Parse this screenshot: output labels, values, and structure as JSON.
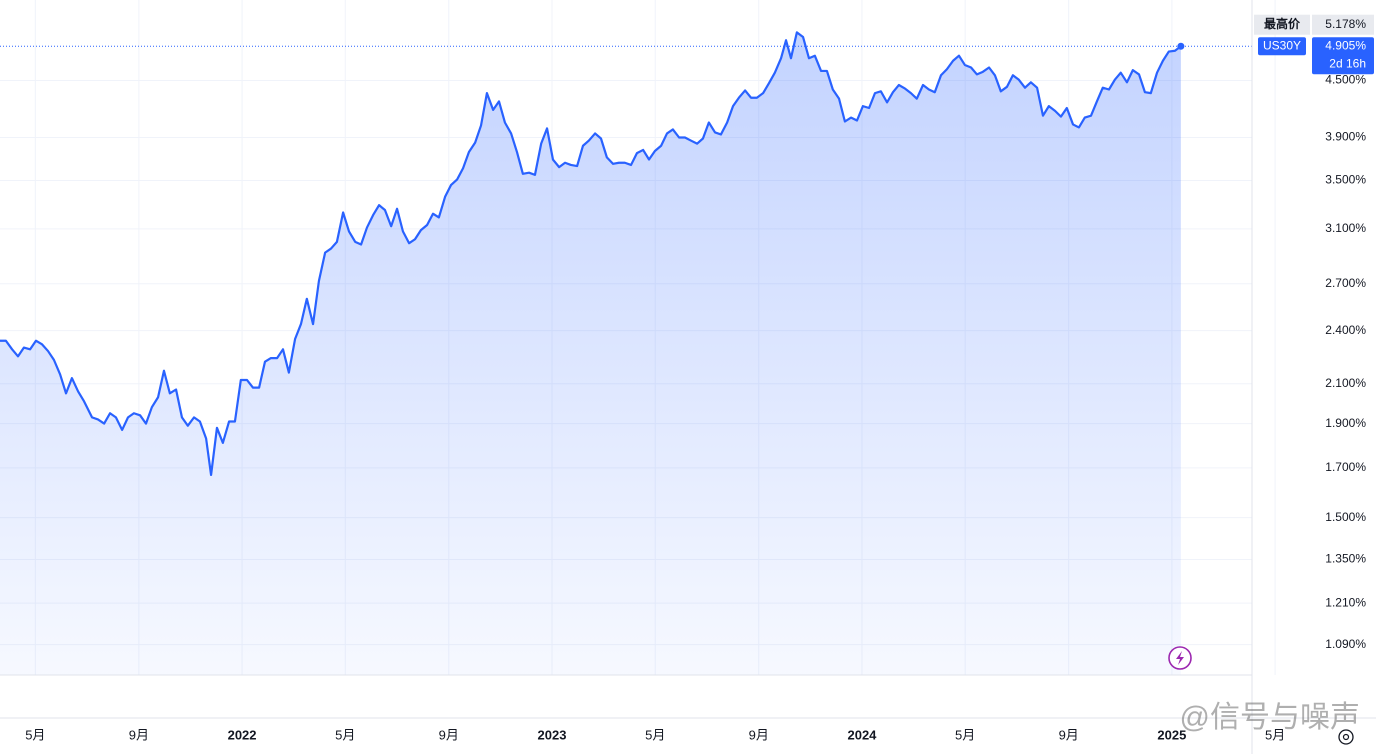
{
  "chart_data": {
    "type": "area",
    "log_scale": true,
    "grid": true,
    "xlim": [
      2021.219,
      2025.252
    ],
    "ylim": [
      1.01,
      5.51
    ],
    "xticks": [
      {
        "value": 2021.333,
        "label": "5月"
      },
      {
        "value": 2021.667,
        "label": "9月"
      },
      2022,
      {
        "value": 2022.333,
        "label": "5月"
      },
      {
        "value": 2022.667,
        "label": "9月"
      },
      2023,
      {
        "value": 2023.333,
        "label": "5月"
      },
      {
        "value": 2023.667,
        "label": "9月"
      },
      2024,
      {
        "value": 2024.333,
        "label": "5月"
      },
      {
        "value": 2024.667,
        "label": "9月"
      },
      2025,
      {
        "value": 2025.333,
        "label": "5月"
      }
    ],
    "yticks": [
      {
        "value": 4.5,
        "label": "4.500%"
      },
      {
        "value": 3.9,
        "label": "3.900%"
      },
      {
        "value": 3.5,
        "label": "3.500%"
      },
      {
        "value": 3.1,
        "label": "3.100%"
      },
      {
        "value": 2.7,
        "label": "2.700%"
      },
      {
        "value": 2.4,
        "label": "2.400%"
      },
      {
        "value": 2.1,
        "label": "2.100%"
      },
      {
        "value": 1.9,
        "label": "1.900%"
      },
      {
        "value": 1.7,
        "label": "1.700%"
      },
      {
        "value": 1.5,
        "label": "1.500%"
      },
      {
        "value": 1.35,
        "label": "1.350%"
      },
      {
        "value": 1.21,
        "label": "1.210%"
      },
      {
        "value": 1.09,
        "label": "1.090%"
      }
    ],
    "high": {
      "name": "最高价",
      "value": 5.178,
      "label": "5.178%"
    },
    "current": {
      "value": 4.905,
      "label": "4.905%",
      "countdown": "2d 16h"
    },
    "watermark": "@信号与噪声",
    "series": [
      {
        "name": "US30Y",
        "color": "#2962ff",
        "x": [
          2021.219,
          2021.238,
          2021.258,
          2021.277,
          2021.296,
          2021.316,
          2021.335,
          2021.354,
          2021.374,
          2021.393,
          2021.413,
          2021.432,
          2021.451,
          2021.471,
          2021.49,
          2021.516,
          2021.535,
          2021.555,
          2021.574,
          2021.593,
          2021.613,
          2021.632,
          2021.651,
          2021.671,
          2021.69,
          2021.709,
          2021.729,
          2021.748,
          2021.767,
          2021.787,
          2021.806,
          2021.825,
          2021.845,
          2021.864,
          2021.884,
          2021.9,
          2021.919,
          2021.938,
          2021.958,
          2021.977,
          2021.996,
          2022.016,
          2022.035,
          2022.055,
          2022.074,
          2022.093,
          2022.113,
          2022.132,
          2022.151,
          2022.171,
          2022.19,
          2022.209,
          2022.229,
          2022.248,
          2022.268,
          2022.287,
          2022.306,
          2022.326,
          2022.345,
          2022.365,
          2022.384,
          2022.403,
          2022.423,
          2022.442,
          2022.461,
          2022.481,
          2022.5,
          2022.519,
          2022.539,
          2022.558,
          2022.577,
          2022.597,
          2022.616,
          2022.635,
          2022.655,
          2022.674,
          2022.694,
          2022.713,
          2022.732,
          2022.752,
          2022.771,
          2022.79,
          2022.81,
          2022.829,
          2022.848,
          2022.868,
          2022.887,
          2022.906,
          2022.926,
          2022.945,
          2022.965,
          2022.984,
          2023.003,
          2023.023,
          2023.042,
          2023.061,
          2023.081,
          2023.1,
          2023.119,
          2023.139,
          2023.158,
          2023.177,
          2023.197,
          2023.216,
          2023.235,
          2023.255,
          2023.274,
          2023.294,
          2023.313,
          2023.332,
          2023.352,
          2023.371,
          2023.39,
          2023.41,
          2023.429,
          2023.448,
          2023.468,
          2023.487,
          2023.506,
          2023.526,
          2023.545,
          2023.565,
          2023.584,
          2023.603,
          2023.623,
          2023.642,
          2023.661,
          2023.681,
          2023.7,
          2023.719,
          2023.739,
          2023.755,
          2023.771,
          2023.79,
          2023.81,
          2023.829,
          2023.848,
          2023.868,
          2023.887,
          2023.906,
          2023.926,
          2023.945,
          2023.965,
          2023.984,
          2024.003,
          2024.023,
          2024.042,
          2024.061,
          2024.081,
          2024.1,
          2024.119,
          2024.139,
          2024.158,
          2024.177,
          2024.197,
          2024.216,
          2024.235,
          2024.255,
          2024.274,
          2024.294,
          2024.313,
          2024.332,
          2024.352,
          2024.371,
          2024.39,
          2024.41,
          2024.429,
          2024.448,
          2024.468,
          2024.487,
          2024.506,
          2024.526,
          2024.545,
          2024.565,
          2024.584,
          2024.603,
          2024.623,
          2024.642,
          2024.661,
          2024.681,
          2024.7,
          2024.719,
          2024.739,
          2024.758,
          2024.777,
          2024.797,
          2024.816,
          2024.835,
          2024.855,
          2024.874,
          2024.894,
          2024.913,
          2024.932,
          2024.952,
          2024.971,
          2024.99,
          2025.01,
          2025.029
        ],
        "values": [
          2.34,
          2.34,
          2.29,
          2.25,
          2.3,
          2.29,
          2.34,
          2.32,
          2.28,
          2.23,
          2.15,
          2.05,
          2.13,
          2.06,
          2.01,
          1.93,
          1.92,
          1.9,
          1.95,
          1.93,
          1.87,
          1.93,
          1.95,
          1.94,
          1.9,
          1.98,
          2.03,
          2.17,
          2.05,
          2.07,
          1.93,
          1.89,
          1.93,
          1.91,
          1.83,
          1.67,
          1.88,
          1.81,
          1.91,
          1.91,
          2.12,
          2.12,
          2.08,
          2.08,
          2.22,
          2.24,
          2.24,
          2.29,
          2.16,
          2.35,
          2.44,
          2.6,
          2.44,
          2.72,
          2.92,
          2.95,
          3.0,
          3.23,
          3.08,
          3.0,
          2.98,
          3.11,
          3.21,
          3.29,
          3.25,
          3.12,
          3.26,
          3.08,
          2.99,
          3.02,
          3.09,
          3.13,
          3.22,
          3.19,
          3.36,
          3.46,
          3.51,
          3.61,
          3.76,
          3.85,
          4.02,
          4.36,
          4.18,
          4.27,
          4.05,
          3.94,
          3.76,
          3.56,
          3.57,
          3.55,
          3.84,
          3.99,
          3.69,
          3.62,
          3.66,
          3.64,
          3.63,
          3.82,
          3.87,
          3.94,
          3.89,
          3.71,
          3.65,
          3.66,
          3.66,
          3.64,
          3.75,
          3.78,
          3.69,
          3.77,
          3.82,
          3.94,
          3.98,
          3.9,
          3.9,
          3.87,
          3.84,
          3.89,
          4.05,
          3.95,
          3.93,
          4.05,
          4.22,
          4.31,
          4.39,
          4.31,
          4.31,
          4.36,
          4.47,
          4.59,
          4.76,
          4.98,
          4.76,
          5.08,
          5.02,
          4.76,
          4.79,
          4.61,
          4.61,
          4.4,
          4.3,
          4.06,
          4.1,
          4.07,
          4.22,
          4.2,
          4.36,
          4.38,
          4.26,
          4.37,
          4.45,
          4.41,
          4.36,
          4.3,
          4.45,
          4.4,
          4.37,
          4.56,
          4.63,
          4.73,
          4.79,
          4.68,
          4.65,
          4.57,
          4.6,
          4.65,
          4.56,
          4.38,
          4.43,
          4.56,
          4.51,
          4.42,
          4.48,
          4.42,
          4.12,
          4.22,
          4.17,
          4.11,
          4.2,
          4.03,
          4.0,
          4.1,
          4.12,
          4.27,
          4.42,
          4.4,
          4.51,
          4.59,
          4.48,
          4.62,
          4.57,
          4.37,
          4.36,
          4.59,
          4.73,
          4.84,
          4.85,
          4.905
        ]
      }
    ]
  }
}
